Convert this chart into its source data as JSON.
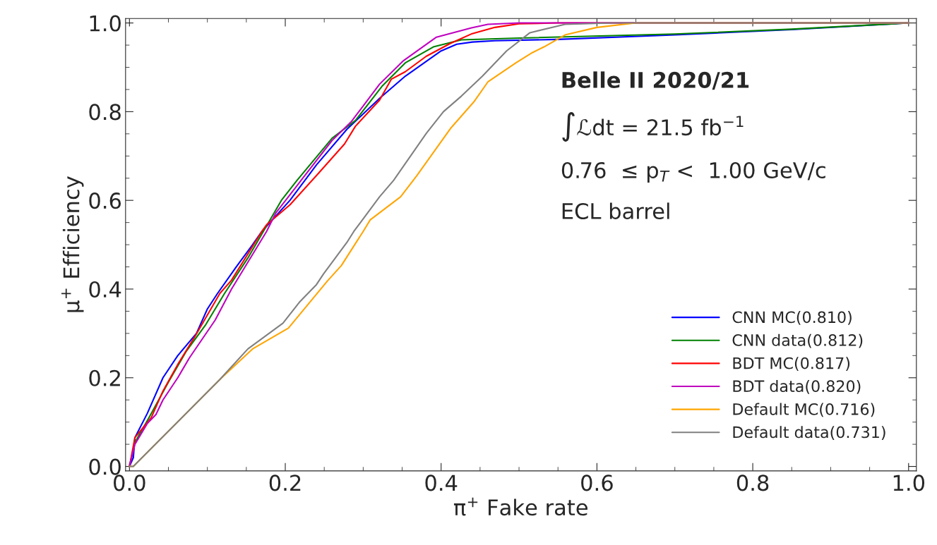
{
  "chart_data": {
    "type": "line",
    "xlabel": "π$^{+}$ Fake rate",
    "ylabel": "μ$^{+}$ Efficiency",
    "annotations": [
      "Belle II 2020/21",
      "∫ℒdt = 21.5 fb$^{−1}$",
      "0.76  ≤ p$_{T}$ <  1.00 GeV/c",
      "ECL barrel"
    ],
    "xlim": [
      -0.005,
      1.01
    ],
    "ylim": [
      -0.01,
      1.01
    ],
    "xticks": [
      {
        "value": 0,
        "label": "0.0"
      },
      {
        "value": 0.2,
        "label": "0.2"
      },
      {
        "value": 0.4,
        "label": "0.4"
      },
      {
        "value": 0.6,
        "label": "0.6"
      },
      {
        "value": 0.8,
        "label": "0.8"
      },
      {
        "value": 1,
        "label": "1.0"
      }
    ],
    "yticks": [
      {
        "value": 0,
        "label": "0.0"
      },
      {
        "value": 0.2,
        "label": "0.2"
      },
      {
        "value": 0.4,
        "label": "0.4"
      },
      {
        "value": 0.6,
        "label": "0.6"
      },
      {
        "value": 0.8,
        "label": "0.8"
      },
      {
        "value": 1,
        "label": "1.0"
      }
    ],
    "legend": "bottom right",
    "grid": false,
    "marker": "none",
    "line_style": "solid",
    "series": [
      {
        "name": "CNN MC(0.810)",
        "color": "#0000ff",
        "x": [
          0,
          0.005,
          0.007,
          0.023,
          0.043,
          0.062,
          0.086,
          0.1,
          0.113,
          0.137,
          0.158,
          0.17,
          0.206,
          0.24,
          0.279,
          0.321,
          0.354,
          0.4,
          0.42,
          0.44,
          0.469,
          0.55,
          0.7,
          0.85,
          1.0
        ],
        "values": [
          0,
          0.02,
          0.065,
          0.12,
          0.2,
          0.25,
          0.3,
          0.355,
          0.39,
          0.45,
          0.5,
          0.53,
          0.6,
          0.68,
          0.76,
          0.83,
          0.88,
          0.937,
          0.952,
          0.957,
          0.96,
          0.963,
          0.973,
          0.985,
          1.0
        ]
      },
      {
        "name": "CNN data(0.812)",
        "color": "#008000",
        "x": [
          0,
          0.007,
          0.025,
          0.05,
          0.073,
          0.098,
          0.122,
          0.152,
          0.195,
          0.215,
          0.26,
          0.29,
          0.324,
          0.354,
          0.39,
          0.426,
          0.5,
          0.7,
          0.85,
          1.0
        ],
        "values": [
          0,
          0.054,
          0.11,
          0.19,
          0.26,
          0.32,
          0.39,
          0.47,
          0.6,
          0.645,
          0.74,
          0.78,
          0.857,
          0.91,
          0.946,
          0.962,
          0.966,
          0.975,
          0.986,
          1.0
        ]
      },
      {
        "name": "BDT MC(0.817)",
        "color": "#ff0000",
        "x": [
          0,
          0.007,
          0.028,
          0.043,
          0.062,
          0.083,
          0.116,
          0.131,
          0.17,
          0.176,
          0.206,
          0.24,
          0.276,
          0.29,
          0.321,
          0.336,
          0.354,
          0.381,
          0.412,
          0.44,
          0.469,
          0.5,
          0.55,
          1.0
        ],
        "values": [
          0,
          0.065,
          0.11,
          0.17,
          0.23,
          0.29,
          0.39,
          0.42,
          0.53,
          0.545,
          0.59,
          0.656,
          0.727,
          0.767,
          0.826,
          0.873,
          0.89,
          0.925,
          0.954,
          0.976,
          0.99,
          0.998,
          1.0,
          1.0
        ]
      },
      {
        "name": "BDT data(0.820)",
        "color": "#bf00bf",
        "x": [
          0,
          0.007,
          0.023,
          0.034,
          0.043,
          0.062,
          0.077,
          0.11,
          0.131,
          0.176,
          0.188,
          0.218,
          0.26,
          0.285,
          0.321,
          0.351,
          0.394,
          0.439,
          0.46,
          0.5,
          1.0
        ],
        "values": [
          0,
          0.05,
          0.097,
          0.117,
          0.15,
          0.2,
          0.245,
          0.33,
          0.4,
          0.53,
          0.572,
          0.64,
          0.735,
          0.778,
          0.862,
          0.914,
          0.968,
          0.989,
          0.997,
          1.0,
          1.0
        ]
      },
      {
        "name": "Default MC(0.716)",
        "color": "#ffa500",
        "x": [
          0,
          0.005,
          0.116,
          0.158,
          0.204,
          0.254,
          0.272,
          0.3,
          0.309,
          0.348,
          0.369,
          0.412,
          0.442,
          0.46,
          0.496,
          0.517,
          0.532,
          0.559,
          0.6,
          0.65,
          1.0
        ],
        "values": [
          0,
          0,
          0.196,
          0.265,
          0.312,
          0.418,
          0.453,
          0.53,
          0.556,
          0.608,
          0.656,
          0.762,
          0.822,
          0.867,
          0.91,
          0.933,
          0.946,
          0.973,
          0.99,
          1.0,
          1.0
        ]
      },
      {
        "name": "Default data(0.731)",
        "color": "#808080",
        "x": [
          0,
          0.005,
          0.116,
          0.152,
          0.197,
          0.218,
          0.24,
          0.249,
          0.279,
          0.288,
          0.321,
          0.339,
          0.381,
          0.403,
          0.426,
          0.453,
          0.484,
          0.514,
          0.559,
          0.62,
          1.0
        ],
        "values": [
          0,
          0,
          0.196,
          0.265,
          0.323,
          0.37,
          0.41,
          0.434,
          0.505,
          0.53,
          0.608,
          0.645,
          0.751,
          0.8,
          0.835,
          0.88,
          0.937,
          0.978,
          0.997,
          1.0,
          1.0
        ]
      }
    ]
  }
}
